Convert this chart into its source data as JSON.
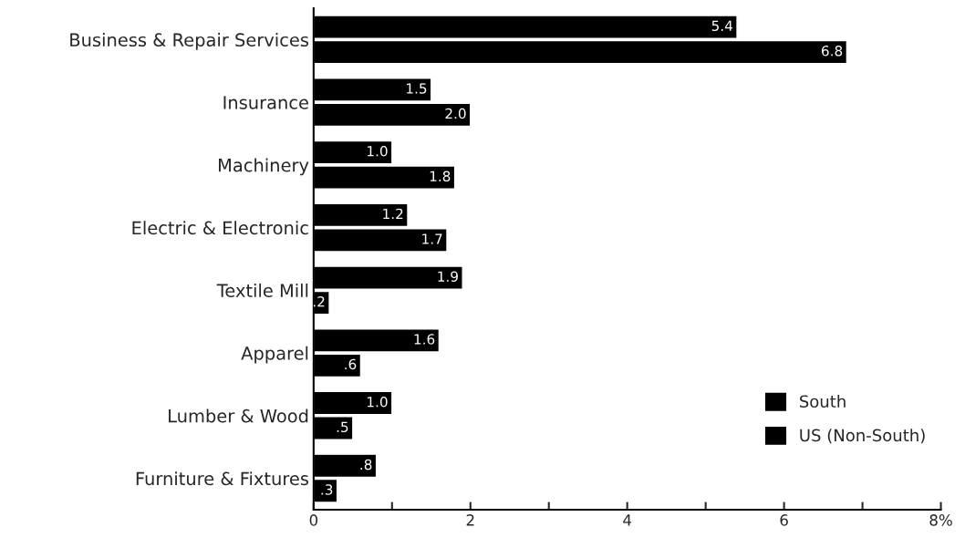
{
  "chart_data": {
    "type": "bar",
    "orientation": "horizontal",
    "categories": [
      "Business & Repair Services",
      "Insurance",
      "Machinery",
      "Electric & Electronic",
      "Textile Mill",
      "Apparel",
      "Lumber & Wood",
      "Furniture & Fixtures"
    ],
    "series": [
      {
        "name": "South",
        "color": "#000000",
        "values": [
          5.4,
          1.5,
          1.0,
          1.2,
          1.9,
          1.6,
          1.0,
          0.8
        ],
        "value_labels": [
          "5.4",
          "1.5",
          "1.0",
          "1.2",
          "1.9",
          "1.6",
          "1.0",
          ".8"
        ]
      },
      {
        "name": "US (Non-South)",
        "color": "#000000",
        "values": [
          6.8,
          2.0,
          1.8,
          1.7,
          0.2,
          0.6,
          0.5,
          0.3
        ],
        "value_labels": [
          "6.8",
          "2.0",
          "1.8",
          "1.7",
          ".2",
          ".6",
          ".5",
          ".3"
        ]
      }
    ],
    "xlim": [
      0,
      8
    ],
    "xticks": [
      0,
      {
        "value": 1,
        "label": null
      },
      2,
      {
        "value": 3,
        "label": null
      },
      4,
      {
        "value": 5,
        "label": null
      },
      6,
      {
        "value": 7,
        "label": null
      },
      {
        "value": 8,
        "label": "8%"
      }
    ],
    "legend": "bottom right",
    "grid": false
  }
}
